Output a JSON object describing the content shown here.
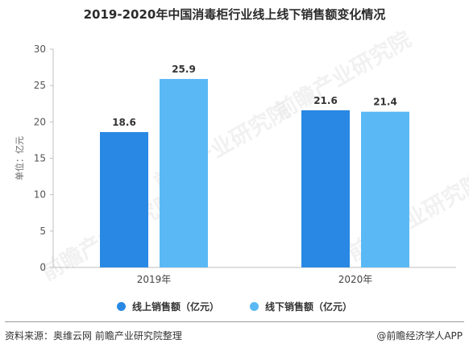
{
  "title": "2019-2020年中国消毒柜行业线上线下销售额变化情况",
  "colors": {
    "online": "#2888e4",
    "offline": "#5ab9f5",
    "axis": "#bfbfbf",
    "grid": "#dcdcdc",
    "text": "#333333"
  },
  "watermark": "前瞻产业研究院",
  "chart_data": {
    "type": "bar",
    "categories": [
      "2019年",
      "2020年"
    ],
    "series": [
      {
        "name": "线上销售额（亿元）",
        "values": [
          18.6,
          21.6
        ]
      },
      {
        "name": "线下销售额（亿元）",
        "values": [
          25.9,
          21.4
        ]
      }
    ],
    "ylabel": "单位：亿元",
    "xlabel": "",
    "ylim": [
      0,
      30
    ],
    "yticks": [
      0,
      5,
      10,
      15,
      20,
      25,
      30
    ],
    "data_labels": [
      [
        "18.6",
        "21.6"
      ],
      [
        "25.9",
        "21.4"
      ]
    ],
    "grid": "none",
    "legend": "bottom-center"
  },
  "footer": {
    "source": "资料来源：奥维云网 前瞻产业研究院整理",
    "brand": "@前瞻经济学人APP"
  }
}
